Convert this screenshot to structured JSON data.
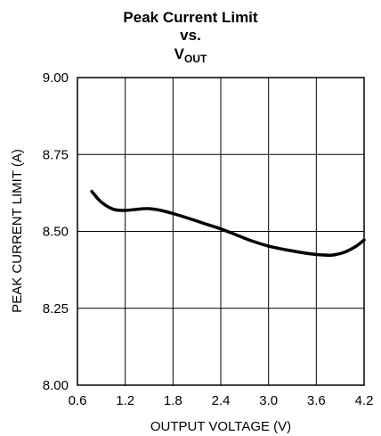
{
  "chart_data": {
    "type": "line",
    "title": {
      "line1": "Peak Current Limit",
      "line2": "vs.",
      "line3_main": "V",
      "line3_sub": "OUT"
    },
    "xlabel": "OUTPUT VOLTAGE (V)",
    "ylabel": "PEAK CURRENT LIMIT (A)",
    "xlim": [
      0.6,
      4.2
    ],
    "ylim": [
      8.0,
      9.0
    ],
    "xticks": [
      "0.6",
      "1.2",
      "1.8",
      "2.4",
      "3.0",
      "3.6",
      "4.2"
    ],
    "yticks": [
      "8.00",
      "8.25",
      "8.50",
      "8.75",
      "9.00"
    ],
    "grid": true,
    "series": [
      {
        "x": [
          0.78,
          0.9,
          1.05,
          1.2,
          1.35,
          1.5,
          1.65,
          1.8,
          2.0,
          2.2,
          2.4,
          2.6,
          2.8,
          3.0,
          3.2,
          3.4,
          3.6,
          3.8,
          3.95,
          4.1,
          4.2
        ],
        "y": [
          8.63,
          8.595,
          8.572,
          8.568,
          8.572,
          8.574,
          8.568,
          8.558,
          8.542,
          8.525,
          8.508,
          8.488,
          8.468,
          8.452,
          8.441,
          8.432,
          8.425,
          8.423,
          8.432,
          8.452,
          8.472
        ]
      }
    ]
  }
}
